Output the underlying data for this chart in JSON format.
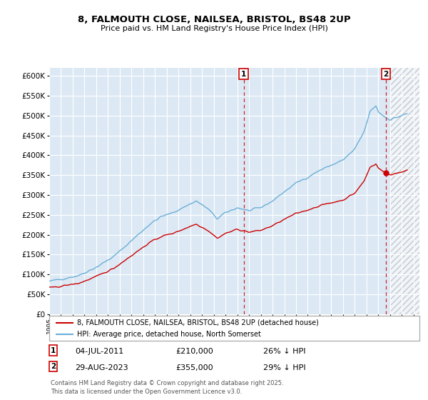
{
  "title1": "8, FALMOUTH CLOSE, NAILSEA, BRISTOL, BS48 2UP",
  "title2": "Price paid vs. HM Land Registry's House Price Index (HPI)",
  "legend1": "8, FALMOUTH CLOSE, NAILSEA, BRISTOL, BS48 2UP (detached house)",
  "legend2": "HPI: Average price, detached house, North Somerset",
  "sale1_date": "04-JUL-2011",
  "sale1_price": 210000,
  "sale1_label": "26% ↓ HPI",
  "sale2_date": "29-AUG-2023",
  "sale2_price": 355000,
  "sale2_label": "29% ↓ HPI",
  "footnote": "Contains HM Land Registry data © Crown copyright and database right 2025.\nThis data is licensed under the Open Government Licence v3.0.",
  "hpi_color": "#6baed6",
  "price_color": "#cc0000",
  "background_color": "#dce9f5",
  "hatch_color": "#cccccc",
  "ylim": [
    0,
    620000
  ],
  "yticks": [
    0,
    50000,
    100000,
    150000,
    200000,
    250000,
    300000,
    350000,
    400000,
    450000,
    500000,
    550000,
    600000
  ],
  "xmin": 1995,
  "xmax": 2026.5,
  "sale1_x": 2011.54,
  "sale2_x": 2023.66,
  "hatch_start": 2024.0
}
